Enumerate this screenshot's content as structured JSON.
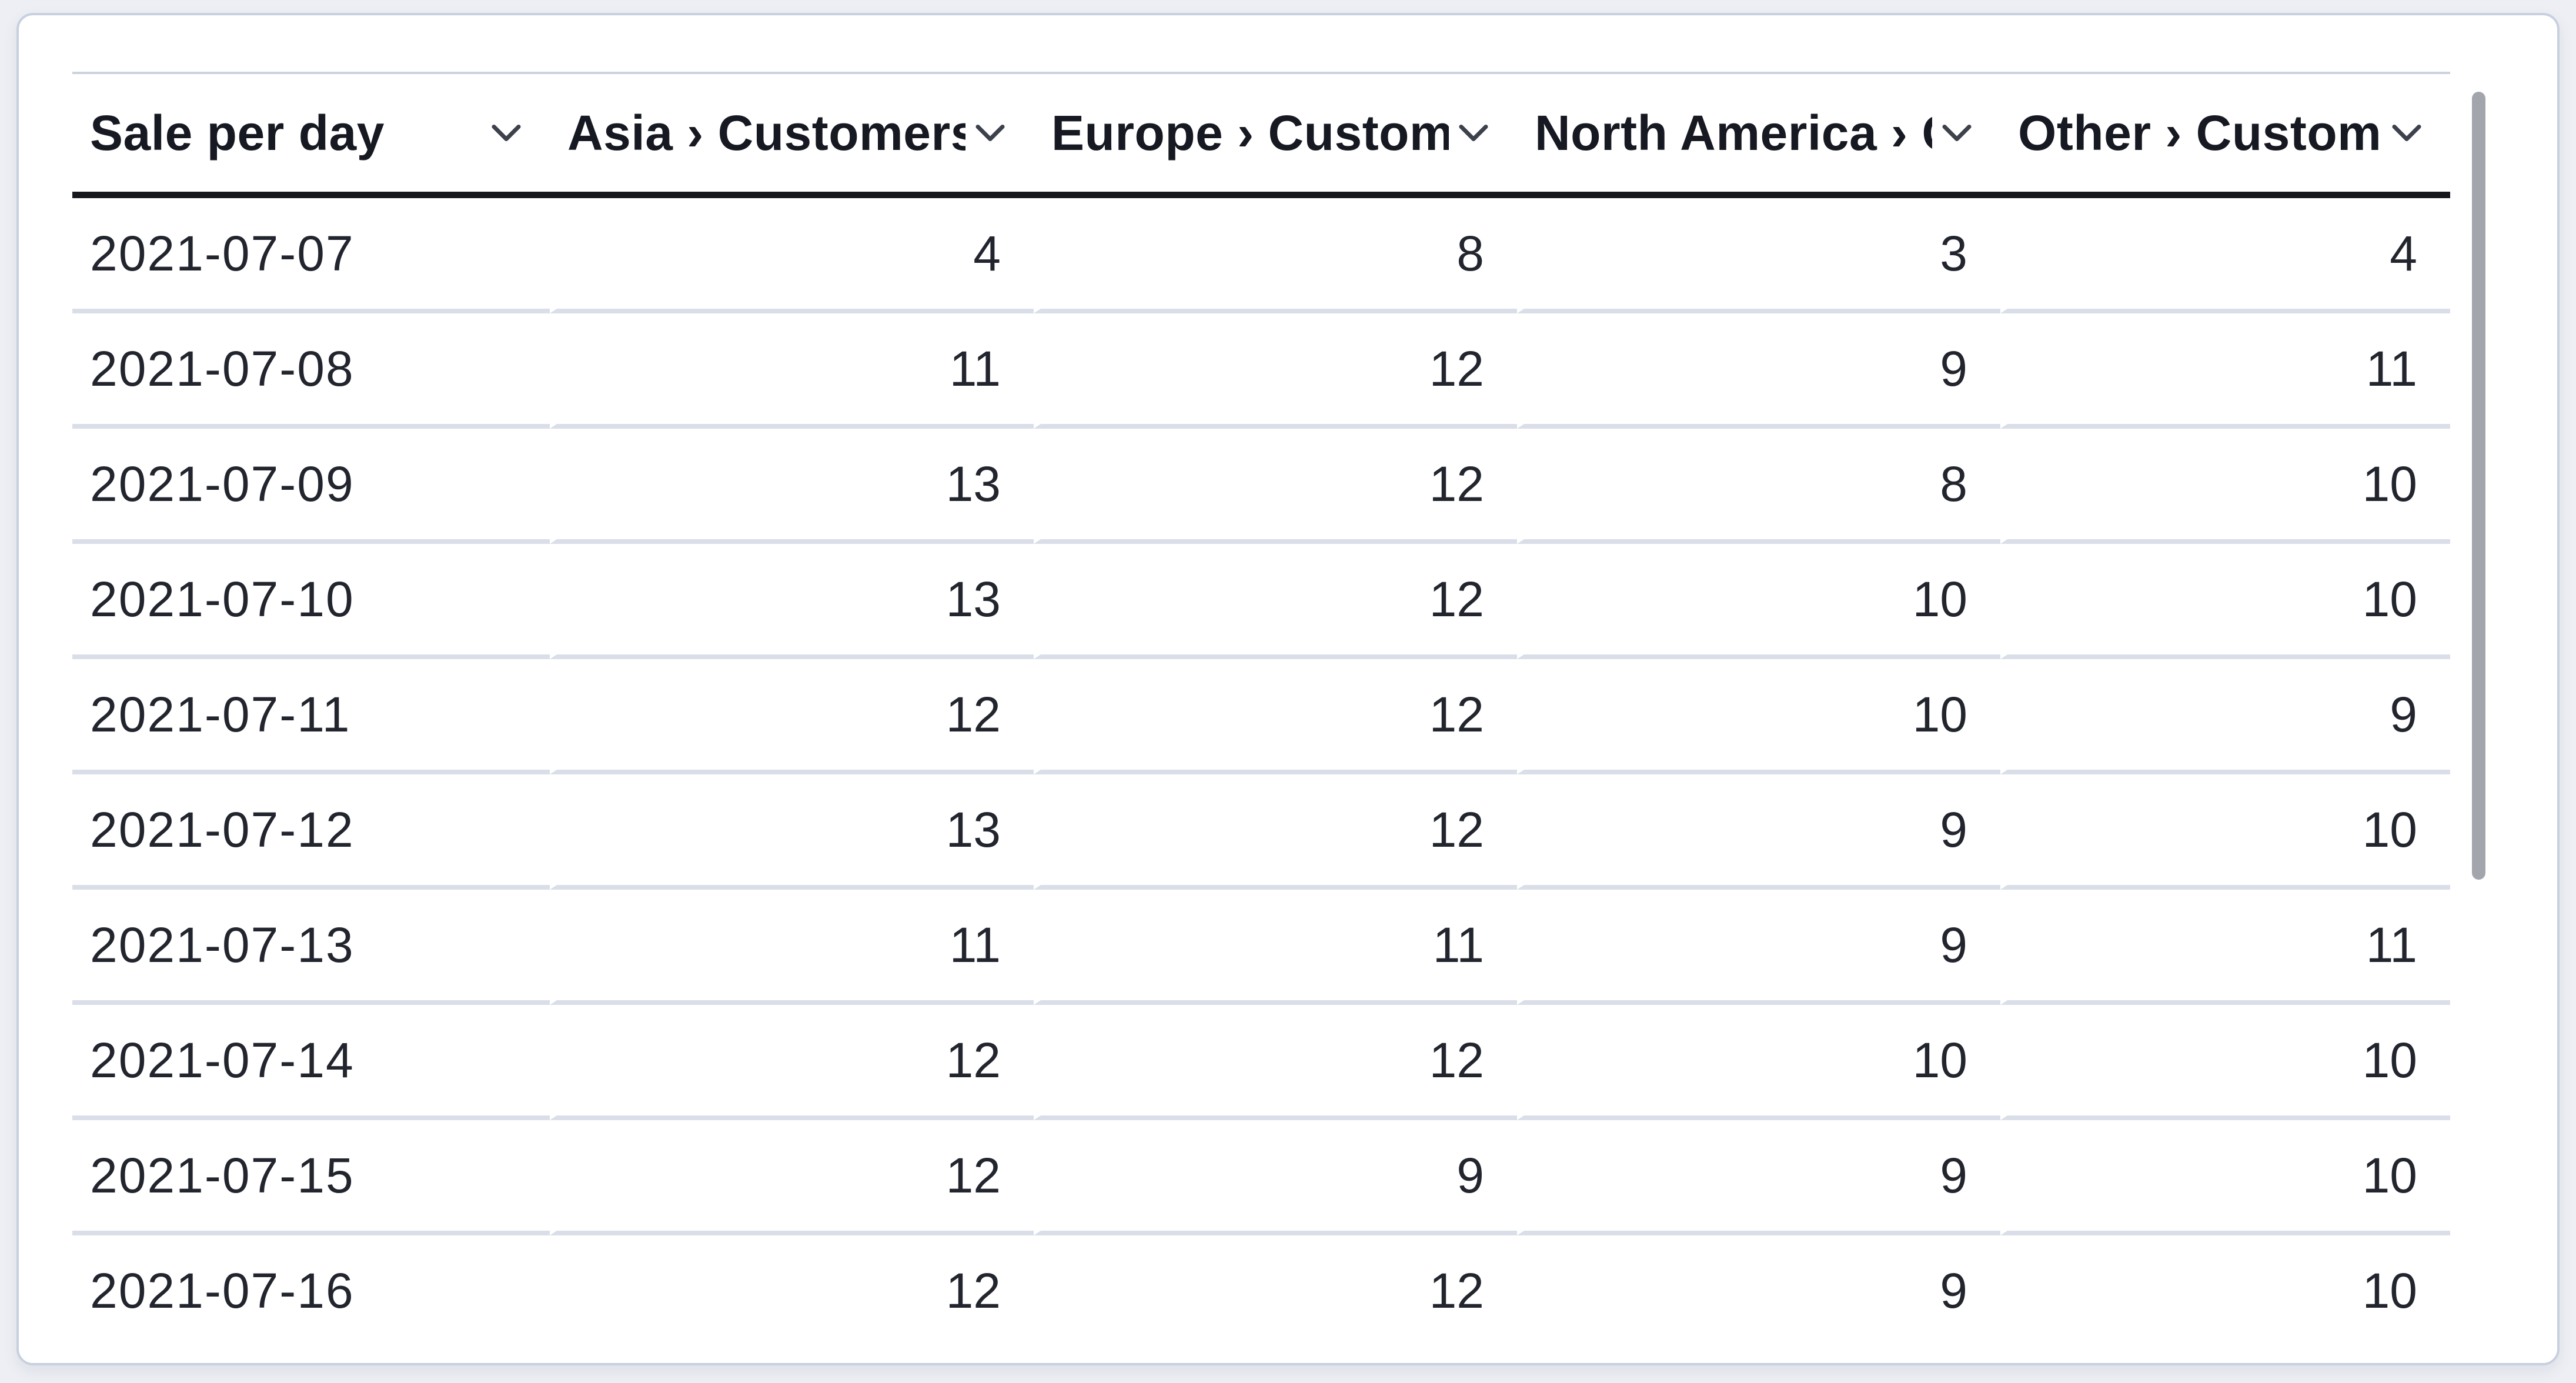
{
  "table": {
    "columns": [
      {
        "id": "sale-per-day",
        "label": "Sale per day"
      },
      {
        "id": "asia",
        "label": "Asia › Customers"
      },
      {
        "id": "europe",
        "label": "Europe › Customers"
      },
      {
        "id": "north-america",
        "label": "North America › Customers"
      },
      {
        "id": "other",
        "label": "Other › Customers"
      }
    ],
    "rows": [
      [
        "2021-07-07",
        "4",
        "8",
        "3",
        "4"
      ],
      [
        "2021-07-08",
        "11",
        "12",
        "9",
        "11"
      ],
      [
        "2021-07-09",
        "13",
        "12",
        "8",
        "10"
      ],
      [
        "2021-07-10",
        "13",
        "12",
        "10",
        "10"
      ],
      [
        "2021-07-11",
        "12",
        "12",
        "10",
        "9"
      ],
      [
        "2021-07-12",
        "13",
        "12",
        "9",
        "10"
      ],
      [
        "2021-07-13",
        "11",
        "11",
        "9",
        "11"
      ],
      [
        "2021-07-14",
        "12",
        "12",
        "10",
        "10"
      ],
      [
        "2021-07-15",
        "12",
        "9",
        "9",
        "10"
      ],
      [
        "2021-07-16",
        "12",
        "12",
        "9",
        "10"
      ]
    ]
  },
  "icons": {
    "header_sort": "chevron-down-icon"
  },
  "colors": {
    "page_bg": "#edeff4",
    "card_bg": "#ffffff",
    "card_border": "#c8d0df",
    "table_top_border": "#ccd3df",
    "header_underline": "#15171d",
    "header_text": "#171922",
    "body_text": "#22252e",
    "row_border": "#d9dee8",
    "chevron_color": "#3c414b",
    "scrollbar_color": "#a2a5ab"
  }
}
